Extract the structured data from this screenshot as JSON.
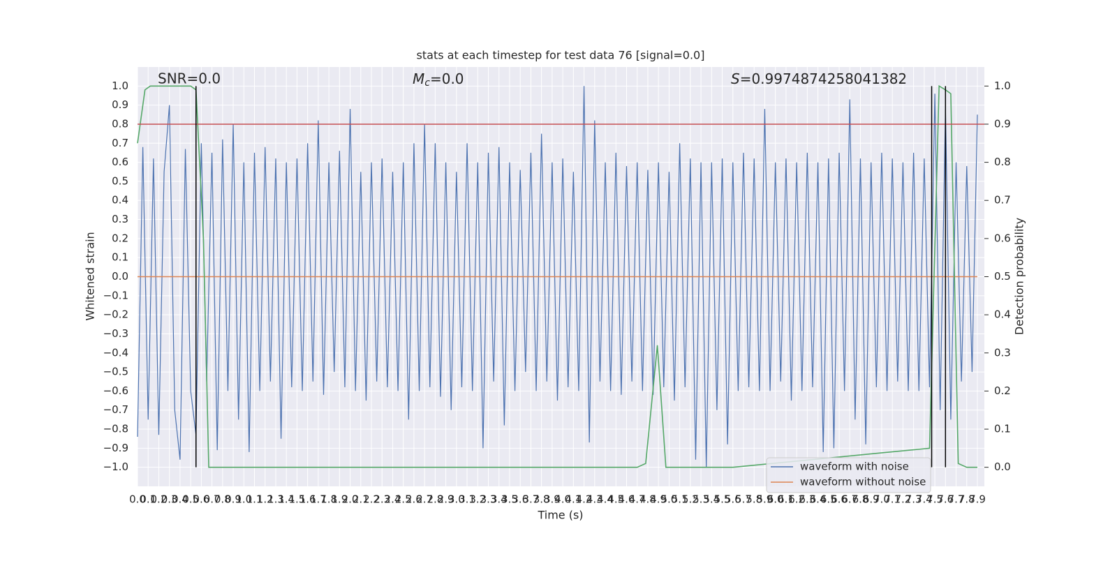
{
  "chart_data": {
    "type": "line",
    "title": "stats at each timestep for test data 76 [signal=0.0]",
    "xlabel": "Time (s)",
    "ylabel": "Whitened strain",
    "y2label": "Detection probability",
    "annotations": {
      "snr": "SNR=0.0",
      "mc": {
        "symbol": "M",
        "sub": "c",
        "text": "=0.0"
      },
      "s": {
        "symbol": "S",
        "text": "=0.9974874258041382"
      }
    },
    "xlim": [
      0,
      7.9
    ],
    "ylim": [
      -1.1,
      1.1
    ],
    "y2lim": [
      -0.05,
      1.05
    ],
    "grid": true,
    "xticks": [
      {
        "value": 0,
        "label": "0.0"
      },
      0.1,
      0.2,
      0.3,
      0.4,
      0.5,
      0.6,
      0.7,
      0.8,
      0.9,
      {
        "value": 1,
        "label": "1.0"
      },
      1.1,
      1.2,
      1.3,
      1.4,
      1.5,
      1.6,
      1.7,
      1.8,
      1.9,
      {
        "value": 2,
        "label": "2.0"
      },
      2.1,
      2.2,
      2.3,
      2.4,
      2.5,
      2.6,
      2.7,
      2.8,
      2.9,
      {
        "value": 3,
        "label": "3.0"
      },
      3.1,
      3.2,
      3.3,
      3.4,
      3.5,
      3.6,
      3.7,
      3.8,
      3.9,
      {
        "value": 4,
        "label": "4.0"
      },
      4.1,
      4.2,
      4.3,
      4.4,
      4.5,
      4.6,
      4.7,
      4.8,
      4.9,
      {
        "value": 5,
        "label": "5.0"
      },
      5.1,
      5.2,
      5.3,
      5.4,
      5.5,
      5.6,
      5.7,
      5.8,
      5.9,
      {
        "value": 6,
        "label": "6.0"
      },
      6.1,
      6.2,
      6.3,
      6.4,
      6.5,
      6.6,
      6.7,
      6.8,
      6.9,
      {
        "value": 7,
        "label": "7.0"
      },
      7.1,
      7.2,
      7.3,
      7.4,
      7.5,
      7.6,
      7.7,
      7.8,
      7.9
    ],
    "yticks": [
      {
        "value": -1,
        "label": "−1.0"
      },
      {
        "value": -0.9,
        "label": "−0.9"
      },
      {
        "value": -0.8,
        "label": "−0.8"
      },
      {
        "value": -0.7,
        "label": "−0.7"
      },
      {
        "value": -0.6,
        "label": "−0.6"
      },
      {
        "value": -0.5,
        "label": "−0.5"
      },
      {
        "value": -0.4,
        "label": "−0.4"
      },
      {
        "value": -0.3,
        "label": "−0.3"
      },
      {
        "value": -0.2,
        "label": "−0.2"
      },
      {
        "value": -0.1,
        "label": "−0.1"
      },
      {
        "value": 0,
        "label": "0.0"
      },
      0.1,
      0.2,
      0.3,
      0.4,
      0.5,
      0.6,
      0.7,
      0.8,
      0.9,
      {
        "value": 1,
        "label": "1.0"
      }
    ],
    "y2ticks": [
      {
        "value": 0,
        "label": "0.0"
      },
      0.1,
      0.2,
      0.3,
      0.4,
      0.5,
      0.6,
      0.7,
      0.8,
      0.9,
      {
        "value": 1,
        "label": "1.0"
      }
    ],
    "hline": {
      "value": 0.8,
      "color": "#c44e52"
    },
    "vlines": {
      "x": [
        0.55,
        7.47,
        7.6
      ],
      "span": [
        -1.0,
        1.0
      ],
      "color": "#000000"
    },
    "series": [
      {
        "name": "waveform with noise",
        "color": "#4c72b0",
        "x": [
          0,
          0.05,
          0.1,
          0.15,
          0.2,
          0.25,
          0.3,
          0.35,
          0.4,
          0.45,
          0.5,
          0.55,
          0.6,
          0.65,
          0.7,
          0.75,
          0.8,
          0.85,
          0.9,
          0.95,
          1,
          1.05,
          1.1,
          1.15,
          1.2,
          1.25,
          1.3,
          1.35,
          1.4,
          1.45,
          1.5,
          1.55,
          1.6,
          1.65,
          1.7,
          1.75,
          1.8,
          1.85,
          1.9,
          1.95,
          2,
          2.05,
          2.1,
          2.15,
          2.2,
          2.25,
          2.3,
          2.35,
          2.4,
          2.45,
          2.5,
          2.55,
          2.6,
          2.65,
          2.7,
          2.75,
          2.8,
          2.85,
          2.9,
          2.95,
          3,
          3.05,
          3.1,
          3.15,
          3.2,
          3.25,
          3.3,
          3.35,
          3.4,
          3.45,
          3.5,
          3.55,
          3.6,
          3.65,
          3.7,
          3.75,
          3.8,
          3.85,
          3.9,
          3.95,
          4,
          4.05,
          4.1,
          4.15,
          4.2,
          4.25,
          4.3,
          4.35,
          4.4,
          4.45,
          4.5,
          4.55,
          4.6,
          4.65,
          4.7,
          4.75,
          4.8,
          4.85,
          4.9,
          4.95,
          5,
          5.05,
          5.1,
          5.15,
          5.2,
          5.25,
          5.3,
          5.35,
          5.4,
          5.45,
          5.5,
          5.55,
          5.6,
          5.65,
          5.7,
          5.75,
          5.8,
          5.85,
          5.9,
          5.95,
          6,
          6.05,
          6.1,
          6.15,
          6.2,
          6.25,
          6.3,
          6.35,
          6.4,
          6.45,
          6.5,
          6.55,
          6.6,
          6.65,
          6.7,
          6.75,
          6.8,
          6.85,
          6.9,
          6.95,
          7,
          7.05,
          7.1,
          7.15,
          7.2,
          7.25,
          7.3,
          7.35,
          7.4,
          7.45,
          7.5,
          7.55,
          7.6,
          7.65,
          7.7,
          7.75,
          7.8,
          7.85,
          7.9
        ],
        "values": [
          -0.84,
          0.68,
          -0.75,
          0.62,
          -0.83,
          0.55,
          0.9,
          -0.7,
          -0.96,
          0.67,
          -0.6,
          -0.83,
          0.7,
          -0.55,
          0.65,
          -0.91,
          0.72,
          -0.6,
          0.8,
          -0.75,
          0.6,
          -0.92,
          0.65,
          -0.6,
          0.68,
          -0.55,
          0.62,
          -0.85,
          0.6,
          -0.58,
          0.62,
          -0.6,
          0.7,
          -0.55,
          0.82,
          -0.62,
          0.6,
          -0.5,
          0.66,
          -0.58,
          0.88,
          -0.6,
          0.55,
          -0.65,
          0.6,
          -0.55,
          0.62,
          -0.58,
          0.55,
          -0.6,
          0.6,
          -0.75,
          0.7,
          -0.6,
          0.8,
          -0.58,
          0.7,
          -0.63,
          0.6,
          -0.7,
          0.55,
          -0.58,
          0.7,
          -0.6,
          0.6,
          -0.9,
          0.65,
          -0.55,
          0.68,
          -0.78,
          0.6,
          -0.6,
          0.56,
          -0.5,
          0.65,
          -0.6,
          0.75,
          -0.55,
          0.6,
          -0.65,
          0.62,
          -0.58,
          0.55,
          -0.6,
          1.0,
          -0.87,
          0.82,
          -0.55,
          0.6,
          -0.6,
          0.65,
          -0.62,
          0.58,
          -0.55,
          0.6,
          -0.6,
          0.56,
          -0.62,
          0.6,
          -0.58,
          0.55,
          -0.65,
          0.7,
          -0.58,
          0.62,
          -0.96,
          0.6,
          -1.0,
          0.6,
          -0.7,
          0.62,
          -0.88,
          0.6,
          -0.6,
          0.65,
          -0.58,
          0.62,
          -0.6,
          0.88,
          -0.6,
          0.6,
          -0.55,
          0.62,
          -0.65,
          0.6,
          -0.6,
          0.65,
          -0.58,
          0.6,
          -0.92,
          0.62,
          -0.9,
          0.65,
          -0.6,
          0.93,
          -0.75,
          0.62,
          -0.88,
          0.6,
          -0.58,
          0.65,
          -0.6,
          0.62,
          -0.55,
          0.6,
          -0.6,
          0.65,
          -0.6,
          0.62,
          -0.58,
          0.96,
          -0.7,
          0.88,
          -0.75,
          0.6,
          -0.55,
          0.58,
          -0.5,
          0.85
        ]
      },
      {
        "name": "waveform without noise",
        "color": "#dd8452",
        "x": [
          0,
          7.9
        ],
        "values": [
          0,
          0
        ]
      },
      {
        "color": "#55a868",
        "axis": "y2",
        "x": [
          0,
          0.07,
          0.12,
          0.5,
          0.55,
          0.62,
          0.67,
          4.7,
          4.78,
          4.89,
          4.97,
          5.6,
          7.45,
          7.54,
          7.6,
          7.65,
          7.72,
          7.8,
          7.9
        ],
        "values": [
          0.85,
          0.99,
          1.0,
          1.0,
          0.99,
          0.6,
          0.0,
          0.0,
          0.01,
          0.32,
          0.0,
          0.0,
          0.05,
          1.0,
          0.99,
          0.98,
          0.01,
          0.0,
          0.0
        ]
      }
    ]
  }
}
